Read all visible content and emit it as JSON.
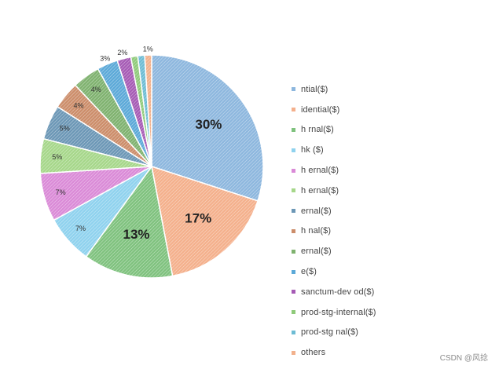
{
  "chart_data": {
    "type": "pie",
    "title": "",
    "start_angle_deg": 0,
    "direction": "clockwise",
    "slices": [
      {
        "label": "30%",
        "legend": "ntial($)",
        "value": 30,
        "color": "#8db7de"
      },
      {
        "label": "17%",
        "legend": "idential($)",
        "value": 17,
        "color": "#f4b08c"
      },
      {
        "label": "13%",
        "legend": "h                 rnal($)",
        "value": 13,
        "color": "#7fc27e"
      },
      {
        "label": "7%",
        "legend": "hk                    ($)",
        "value": 7,
        "color": "#8fd2ee"
      },
      {
        "label": "7%",
        "legend": "h            ernal($)",
        "value": 7,
        "color": "#da8ad7"
      },
      {
        "label": "5%",
        "legend": "h            ernal($)",
        "value": 5,
        "color": "#a6d78a"
      },
      {
        "label": "5%",
        "legend": "                ernal($)",
        "value": 5,
        "color": "#6c97b6"
      },
      {
        "label": "4%",
        "legend": "h              nal($)",
        "value": 4,
        "color": "#cc8d6a"
      },
      {
        "label": "4%",
        "legend": "                ernal($)",
        "value": 4,
        "color": "#7fb26f"
      },
      {
        "label": "3%",
        "legend": "             e($)",
        "value": 3,
        "color": "#5ca9d8"
      },
      {
        "label": "2%",
        "legend": "sanctum-dev        od($)",
        "value": 2,
        "color": "#a65bb5"
      },
      {
        "label": "",
        "legend": "     prod-stg-internal($)",
        "value": 1,
        "color": "#8fca7a"
      },
      {
        "label": "",
        "legend": "         prod-stg    nal($)",
        "value": 1,
        "color": "#6dbcd4"
      },
      {
        "label": "1%",
        "legend": "others",
        "value": 1,
        "color": "#f2b18c"
      }
    ]
  },
  "watermark": "CSDN @风捻"
}
